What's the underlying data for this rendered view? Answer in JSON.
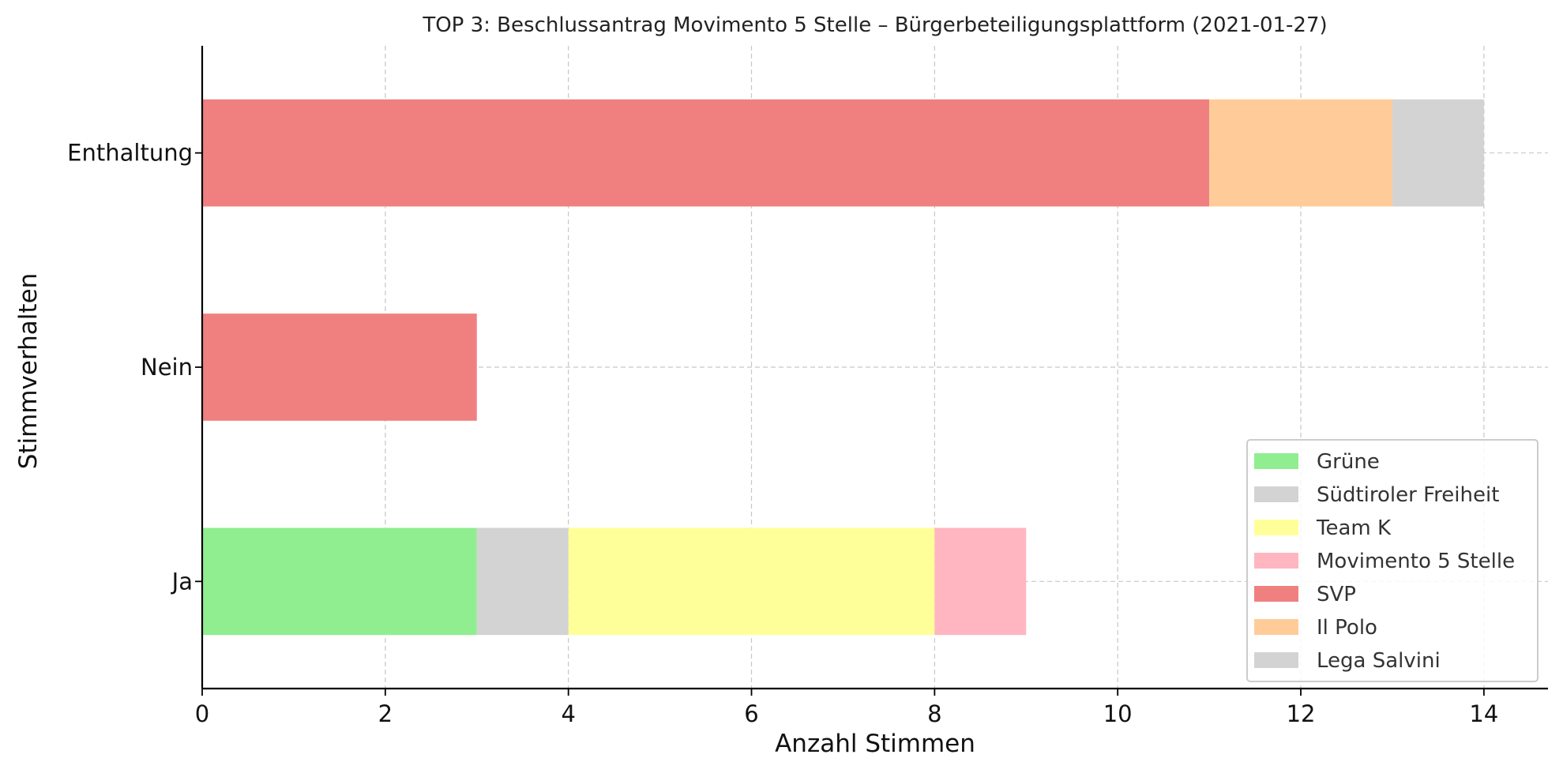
{
  "chart_data": {
    "type": "bar",
    "orientation": "horizontal",
    "stacked": true,
    "title": "TOP 3: Beschlussantrag Movimento 5 Stelle – Bürgerbeteiligungsplattform (2021-01-27)",
    "xlabel": "Anzahl Stimmen",
    "ylabel": "Stimmverhalten",
    "categories": [
      "Ja",
      "Nein",
      "Enthaltung"
    ],
    "xlim": [
      0,
      14.7
    ],
    "xticks": [
      0,
      2,
      4,
      6,
      8,
      10,
      12,
      14
    ],
    "grid": true,
    "legend_position": "bottom-right",
    "series": [
      {
        "name": "Grüne",
        "color": "#90ee90",
        "values": [
          3,
          0,
          0
        ]
      },
      {
        "name": "Südtiroler Freiheit",
        "color": "#d3d3d3",
        "values": [
          1,
          0,
          0
        ]
      },
      {
        "name": "Team K",
        "color": "#ffff99",
        "values": [
          4,
          0,
          0
        ]
      },
      {
        "name": "Movimento 5 Stelle",
        "color": "#ffb6c1",
        "values": [
          1,
          0,
          0
        ]
      },
      {
        "name": "SVP",
        "color": "#f08080",
        "values": [
          0,
          3,
          11
        ]
      },
      {
        "name": "Il Polo",
        "color": "#ffcc99",
        "values": [
          0,
          0,
          2
        ]
      },
      {
        "name": "Lega Salvini",
        "color": "#d3d3d3",
        "values": [
          0,
          0,
          1
        ]
      }
    ]
  }
}
